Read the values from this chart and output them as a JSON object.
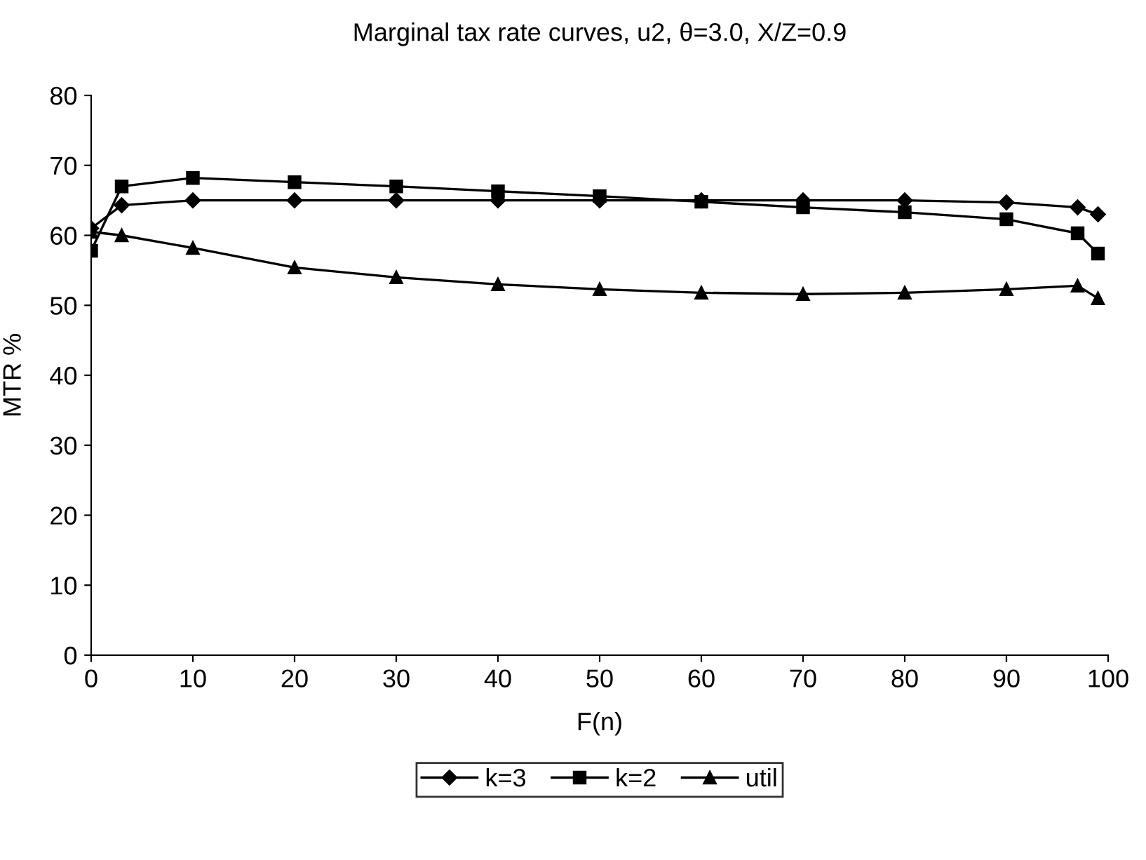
{
  "chart_data": {
    "type": "line",
    "title": "Marginal tax rate curves, u2, θ=3.0, X/Z=0.9",
    "xlabel": "F(n)",
    "ylabel": "MTR %",
    "x": [
      0,
      3,
      10,
      20,
      30,
      40,
      50,
      60,
      70,
      80,
      90,
      97,
      99
    ],
    "series": [
      {
        "name": "k=3",
        "color": "#000000",
        "marker": "diamond",
        "values": [
          61,
          64.3,
          65,
          65,
          65,
          65,
          65,
          65,
          65,
          65,
          64.7,
          64,
          63
        ]
      },
      {
        "name": "k=2",
        "color": "#000000",
        "marker": "square",
        "values": [
          57.8,
          67,
          68.2,
          67.6,
          67,
          66.3,
          65.6,
          64.8,
          64,
          63.3,
          62.3,
          60.3,
          57.4
        ]
      },
      {
        "name": "util",
        "color": "#000000",
        "marker": "triangle",
        "values": [
          60.5,
          60,
          58.2,
          55.4,
          54,
          53,
          52.3,
          51.8,
          51.6,
          51.8,
          52.3,
          52.8,
          51
        ]
      }
    ],
    "xlim": [
      0,
      100
    ],
    "xticks": [
      0,
      10,
      20,
      30,
      40,
      50,
      60,
      70,
      80,
      90,
      100
    ],
    "ylim": [
      0,
      80
    ],
    "yticks": [
      0,
      10,
      20,
      30,
      40,
      50,
      60,
      70,
      80
    ],
    "grid": false,
    "legend": "bottom",
    "line_style": "solid"
  }
}
